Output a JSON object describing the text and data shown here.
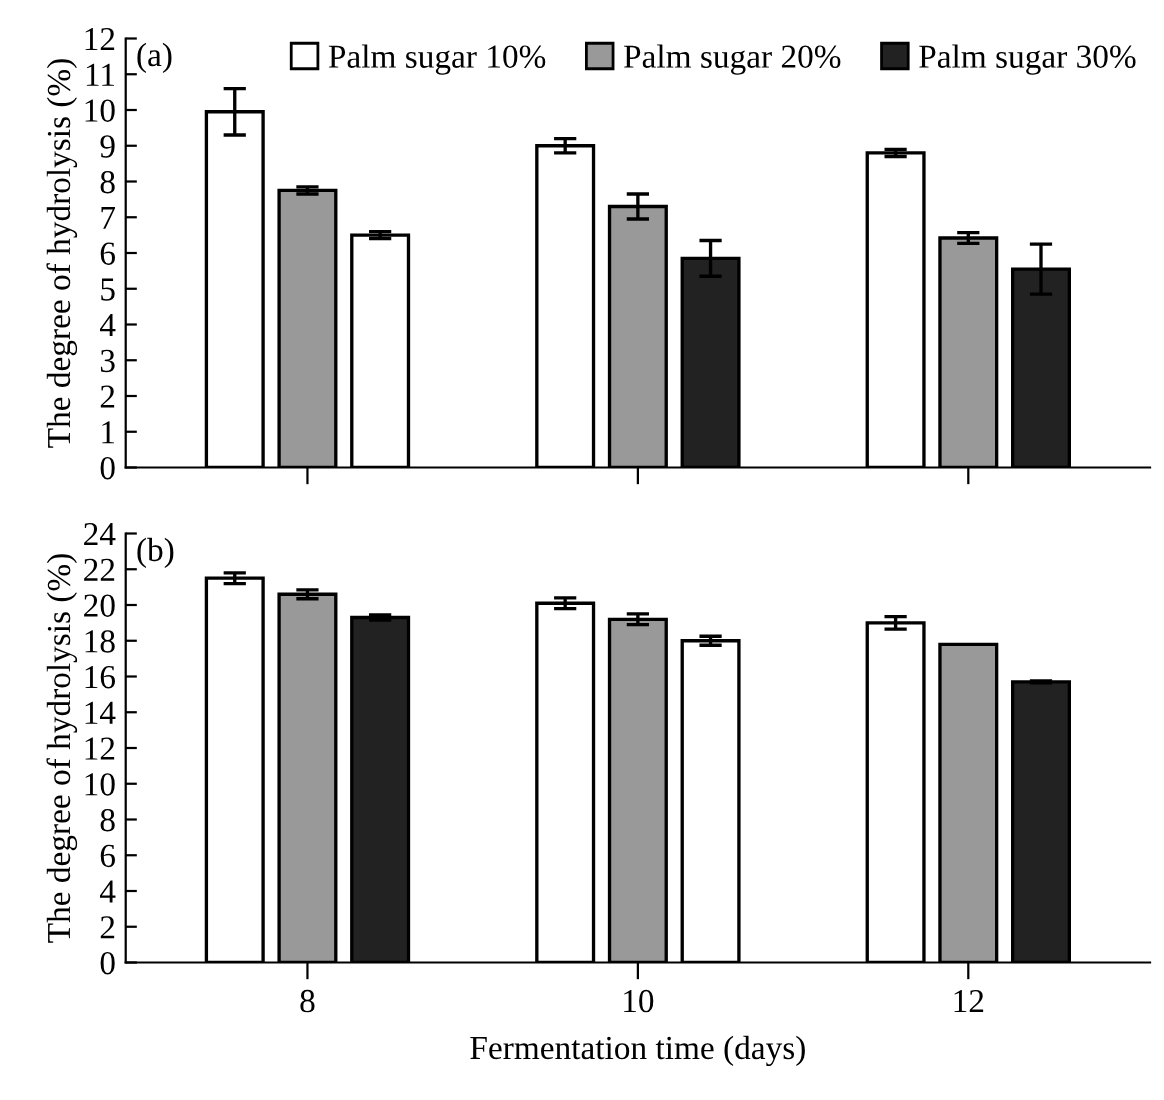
{
  "chart_data": [
    {
      "type": "bar",
      "annotations": [
        "(a)"
      ],
      "ylabel": "The degree of hydrolysis (%)",
      "categories": [
        "8",
        "10",
        "12"
      ],
      "series": [
        {
          "name": "Palm sugar 10%",
          "color": "#ffffff",
          "values": [
            9.95,
            9.0,
            8.8
          ],
          "errors": [
            0.65,
            0.2,
            0.1
          ]
        },
        {
          "name": "Palm sugar 20%",
          "color": "#999999",
          "values": [
            7.75,
            7.3,
            6.42
          ],
          "errors": [
            0.1,
            0.35,
            0.15
          ]
        },
        {
          "name": "Palm sugar 30%",
          "color": "#222222",
          "colors": [
            "#ffffff",
            "#222222",
            "#222222"
          ],
          "values": [
            6.5,
            5.85,
            5.55
          ],
          "errors": [
            0.1,
            0.5,
            0.7
          ]
        }
      ],
      "ylim": [
        0,
        12
      ],
      "yticks": [
        0,
        1,
        2,
        3,
        4,
        5,
        6,
        7,
        8,
        9,
        10,
        11,
        12
      ],
      "legend": "top right",
      "tick_labels": "y"
    },
    {
      "type": "bar",
      "annotations": [
        "(b)"
      ],
      "ylabel": "The degree of hydrolysis (%)",
      "xlabel": "Fermentation time (days)",
      "categories": [
        "8",
        "10",
        "12"
      ],
      "series": [
        {
          "color": "#ffffff",
          "values": [
            21.5,
            20.1,
            19.0
          ],
          "errors": [
            0.3,
            0.3,
            0.35
          ]
        },
        {
          "color": "#999999",
          "values": [
            20.6,
            19.2,
            17.8
          ],
          "errors": [
            0.25,
            0.3,
            null
          ]
        },
        {
          "colors": [
            "#222222",
            "#ffffff",
            "#222222"
          ],
          "values": [
            19.3,
            18.0,
            15.7
          ],
          "errors": [
            0.15,
            0.25,
            0.05
          ]
        }
      ],
      "ylim": [
        0,
        24
      ],
      "yticks": [
        0,
        2,
        4,
        6,
        8,
        10,
        12,
        14,
        16,
        18,
        20,
        22,
        24
      ]
    }
  ]
}
